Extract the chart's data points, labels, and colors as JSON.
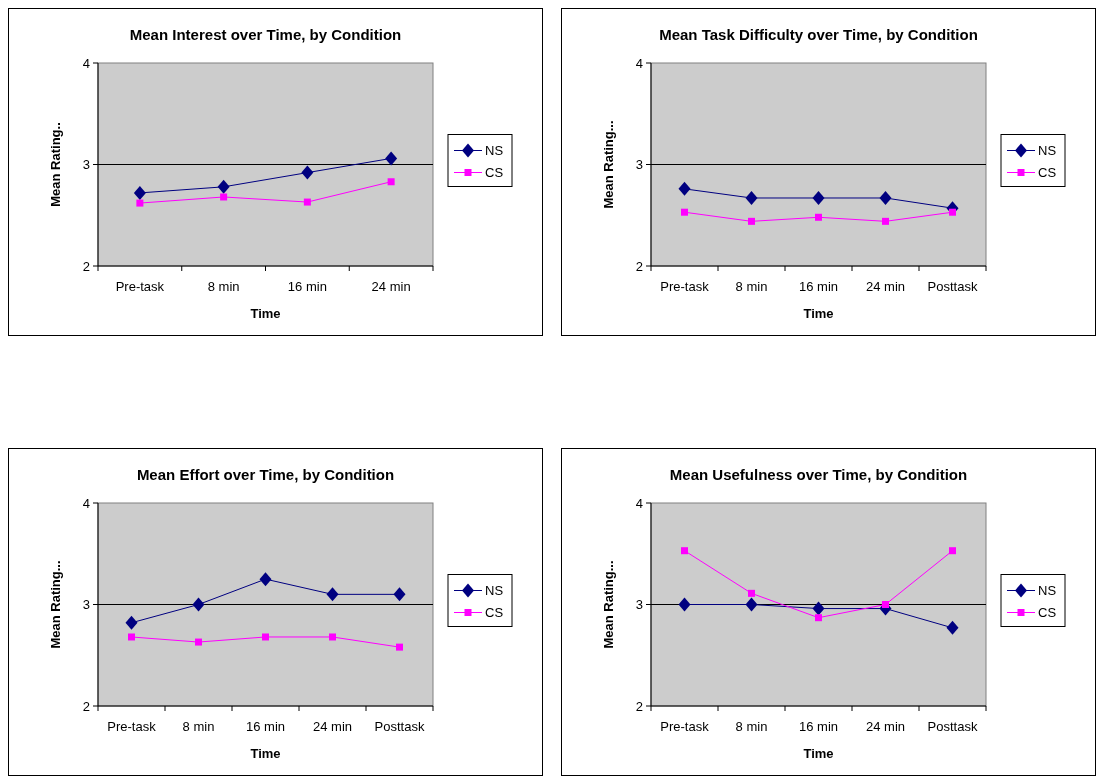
{
  "chart_data": [
    {
      "type": "line",
      "title": "Mean Interest over Time, by Condition",
      "xlabel": "Time",
      "ylabel": "Mean Rating..",
      "categories": [
        "Pre-task",
        "8 min",
        "16 min",
        "24 min"
      ],
      "ylim": [
        2,
        4
      ],
      "yticks": [
        2,
        3,
        4
      ],
      "grid": "y",
      "legend": "right",
      "series": [
        {
          "name": "NS",
          "color": "#000080",
          "marker": "diamond",
          "values": [
            2.72,
            2.78,
            2.92,
            3.06
          ]
        },
        {
          "name": "CS",
          "color": "#ff00ff",
          "marker": "square",
          "values": [
            2.62,
            2.68,
            2.63,
            2.83
          ]
        }
      ]
    },
    {
      "type": "line",
      "title": "Mean Task Difficulty over Time, by Condition",
      "xlabel": "Time",
      "ylabel": "Mean Rating...",
      "categories": [
        "Pre-task",
        "8 min",
        "16 min",
        "24 min",
        "Posttask"
      ],
      "ylim": [
        2,
        4
      ],
      "yticks": [
        2,
        3,
        4
      ],
      "grid": "y",
      "legend": "right",
      "series": [
        {
          "name": "NS",
          "color": "#000080",
          "marker": "diamond",
          "values": [
            2.76,
            2.67,
            2.67,
            2.67,
            2.57
          ]
        },
        {
          "name": "CS",
          "color": "#ff00ff",
          "marker": "square",
          "values": [
            2.53,
            2.44,
            2.48,
            2.44,
            2.53
          ]
        }
      ]
    },
    {
      "type": "line",
      "title": "Mean Effort over Time, by Condition",
      "xlabel": "Time",
      "ylabel": "Mean Rating...",
      "categories": [
        "Pre-task",
        "8 min",
        "16 min",
        "24 min",
        "Posttask"
      ],
      "ylim": [
        2,
        4
      ],
      "yticks": [
        2,
        3,
        4
      ],
      "grid": "y",
      "legend": "right",
      "series": [
        {
          "name": "NS",
          "color": "#000080",
          "marker": "diamond",
          "values": [
            2.82,
            3.0,
            3.25,
            3.1,
            3.1
          ]
        },
        {
          "name": "CS",
          "color": "#ff00ff",
          "marker": "square",
          "values": [
            2.68,
            2.63,
            2.68,
            2.68,
            2.58
          ]
        }
      ]
    },
    {
      "type": "line",
      "title": "Mean Usefulness over Time, by Condition",
      "xlabel": "Time",
      "ylabel": "Mean Rating...",
      "categories": [
        "Pre-task",
        "8 min",
        "16 min",
        "24 min",
        "Posttask"
      ],
      "ylim": [
        2,
        4
      ],
      "yticks": [
        2,
        3,
        4
      ],
      "grid": "y",
      "legend": "right",
      "series": [
        {
          "name": "NS",
          "color": "#000080",
          "marker": "diamond",
          "values": [
            3.0,
            3.0,
            2.96,
            2.96,
            2.77
          ]
        },
        {
          "name": "CS",
          "color": "#ff00ff",
          "marker": "square",
          "values": [
            3.53,
            3.11,
            2.87,
            3.0,
            3.53
          ]
        }
      ]
    }
  ]
}
